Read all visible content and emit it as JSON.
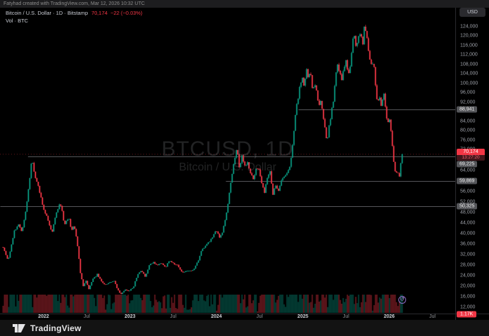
{
  "header": {
    "attribution": "Fatyhad created with TradingView.com, Mar 12, 2026 10:32 UTC"
  },
  "legend": {
    "symbol_line": "Bitcoin / U.S. Dollar · 1D · Bitstamp",
    "price": "70,174",
    "change": "−22 (−0.03%)",
    "vol_line": "Vol · BTC"
  },
  "currency_button": {
    "label": "USD"
  },
  "watermark": {
    "line1": "BTCUSD, 1D",
    "line2": "Bitcoin / U.S. Dollar"
  },
  "footer": {
    "brand": "TradingView"
  },
  "colors": {
    "up": "#089981",
    "down": "#f23645",
    "up_dim": "rgba(8,153,129,0.4)",
    "down_dim": "rgba(242,54,69,0.4)",
    "level_line": "#55565a",
    "axis_border": "#2a2a2e"
  },
  "price_axis": {
    "last_price_label": "70,174",
    "countdown": "13:27:20",
    "volume_label": "1.17K",
    "ticks": [
      {
        "v": 124000,
        "label": "124,000"
      },
      {
        "v": 120000,
        "label": "120,000"
      },
      {
        "v": 116000,
        "label": "116,000"
      },
      {
        "v": 112000,
        "label": "112,000"
      },
      {
        "v": 108000,
        "label": "108,000"
      },
      {
        "v": 104000,
        "label": "104,000"
      },
      {
        "v": 100000,
        "label": "100,000"
      },
      {
        "v": 96000,
        "label": "96,000"
      },
      {
        "v": 92000,
        "label": "92,000"
      },
      {
        "v": 84000,
        "label": "84,000"
      },
      {
        "v": 80000,
        "label": "80,000"
      },
      {
        "v": 76000,
        "label": "76,000"
      },
      {
        "v": 72000,
        "label": "72,000"
      },
      {
        "v": 64000,
        "label": "64,000"
      },
      {
        "v": 56000,
        "label": "56,000"
      },
      {
        "v": 52000,
        "label": "52,000"
      },
      {
        "v": 48000,
        "label": "48,000"
      },
      {
        "v": 44000,
        "label": "44,000"
      },
      {
        "v": 40000,
        "label": "40,000"
      },
      {
        "v": 36000,
        "label": "36,000"
      },
      {
        "v": 32000,
        "label": "32,000"
      },
      {
        "v": 28000,
        "label": "28,000"
      },
      {
        "v": 24000,
        "label": "24,000"
      },
      {
        "v": 20000,
        "label": "20,000"
      },
      {
        "v": 16000,
        "label": "16,000"
      },
      {
        "v": 12000,
        "label": "12,000"
      }
    ],
    "level_labels": [
      {
        "v": 88941,
        "label": "88,941"
      },
      {
        "v": 69225,
        "label": "69,225"
      },
      {
        "v": 59869,
        "label": "59,869"
      },
      {
        "v": 50325,
        "label": "50,325"
      }
    ]
  },
  "time_axis": {
    "labels": [
      {
        "text": "2022",
        "year": 2022.0,
        "major": true
      },
      {
        "text": "Jul",
        "year": 2022.5,
        "major": false
      },
      {
        "text": "2023",
        "year": 2023.0,
        "major": true
      },
      {
        "text": "Jul",
        "year": 2023.5,
        "major": false
      },
      {
        "text": "2024",
        "year": 2024.0,
        "major": true
      },
      {
        "text": "Jul",
        "year": 2024.5,
        "major": false
      },
      {
        "text": "2025",
        "year": 2025.0,
        "major": true
      },
      {
        "text": "Jul",
        "year": 2025.5,
        "major": false
      },
      {
        "text": "2026",
        "year": 2026.0,
        "major": true
      },
      {
        "text": "Jul",
        "year": 2026.5,
        "major": false
      }
    ]
  },
  "chart_data": {
    "type": "candlestick",
    "title": "BTCUSD, 1D",
    "symbol": "Bitcoin / U.S. Dollar",
    "exchange": "Bitstamp",
    "interval": "1D",
    "last_price": 70174,
    "change": -22,
    "change_pct": -0.03,
    "volume_btc": 1170,
    "y_axis": {
      "min": 12000,
      "max": 126500,
      "tick_step": 4000,
      "grid": false
    },
    "x_axis": {
      "start_year": 2021.53,
      "end_year": 2026.19,
      "legend_position": "top-left"
    },
    "price_levels": [
      {
        "price": 88941,
        "from_year": 2024.95
      },
      {
        "price": 69225,
        "from_year": 2021.82
      },
      {
        "price": 59869,
        "from_year": 2024.11
      },
      {
        "price": 50325,
        "from_year": 2021.5
      }
    ],
    "series": [
      [
        2021.532,
        34900
      ],
      [
        2021.589,
        29600
      ],
      [
        2021.661,
        40800
      ],
      [
        2021.71,
        44000
      ],
      [
        2021.75,
        40000
      ],
      [
        2021.806,
        51500
      ],
      [
        2021.863,
        68000
      ],
      [
        2021.903,
        61600
      ],
      [
        2021.952,
        56300
      ],
      [
        2022.0,
        48800
      ],
      [
        2022.048,
        45600
      ],
      [
        2022.097,
        40300
      ],
      [
        2022.145,
        47200
      ],
      [
        2022.194,
        51700
      ],
      [
        2022.242,
        43500
      ],
      [
        2022.29,
        46100
      ],
      [
        2022.323,
        41300
      ],
      [
        2022.355,
        43500
      ],
      [
        2022.395,
        34900
      ],
      [
        2022.427,
        24800
      ],
      [
        2022.46,
        20000
      ],
      [
        2022.492,
        22100
      ],
      [
        2022.524,
        18900
      ],
      [
        2022.573,
        22700
      ],
      [
        2022.621,
        24500
      ],
      [
        2022.669,
        21900
      ],
      [
        2022.718,
        20500
      ],
      [
        2022.766,
        21300
      ],
      [
        2022.815,
        21900
      ],
      [
        2022.863,
        18400
      ],
      [
        2022.895,
        17100
      ],
      [
        2022.944,
        18700
      ],
      [
        2022.992,
        18100
      ],
      [
        2023.04,
        19700
      ],
      [
        2023.089,
        24500
      ],
      [
        2023.137,
        25900
      ],
      [
        2023.177,
        23200
      ],
      [
        2023.218,
        27700
      ],
      [
        2023.266,
        29300
      ],
      [
        2023.315,
        27700
      ],
      [
        2023.363,
        28800
      ],
      [
        2023.411,
        27200
      ],
      [
        2023.46,
        29900
      ],
      [
        2023.508,
        28500
      ],
      [
        2023.556,
        27700
      ],
      [
        2023.605,
        25100
      ],
      [
        2023.653,
        26100
      ],
      [
        2023.702,
        25600
      ],
      [
        2023.75,
        26900
      ],
      [
        2023.798,
        30400
      ],
      [
        2023.831,
        33900
      ],
      [
        2023.879,
        35200
      ],
      [
        2023.927,
        37300
      ],
      [
        2023.976,
        40000
      ],
      [
        2024.008,
        41100
      ],
      [
        2024.04,
        38400
      ],
      [
        2024.073,
        40500
      ],
      [
        2024.105,
        45900
      ],
      [
        2024.137,
        52500
      ],
      [
        2024.169,
        60500
      ],
      [
        2024.202,
        67200
      ],
      [
        2024.234,
        72800
      ],
      [
        2024.266,
        64800
      ],
      [
        2024.298,
        69300
      ],
      [
        2024.331,
        65900
      ],
      [
        2024.363,
        67700
      ],
      [
        2024.395,
        62400
      ],
      [
        2024.427,
        60500
      ],
      [
        2024.46,
        65100
      ],
      [
        2024.492,
        64000
      ],
      [
        2024.524,
        59700
      ],
      [
        2024.556,
        56000
      ],
      [
        2024.589,
        61300
      ],
      [
        2024.621,
        63200
      ],
      [
        2024.653,
        55200
      ],
      [
        2024.685,
        58700
      ],
      [
        2024.718,
        56000
      ],
      [
        2024.75,
        59700
      ],
      [
        2024.782,
        61300
      ],
      [
        2024.815,
        62400
      ],
      [
        2024.847,
        65100
      ],
      [
        2024.871,
        69600
      ],
      [
        2024.895,
        77900
      ],
      [
        2024.919,
        87700
      ],
      [
        2024.944,
        93700
      ],
      [
        2024.968,
        99000
      ],
      [
        2024.992,
        103800
      ],
      [
        2025.016,
        99300
      ],
      [
        2025.04,
        106800
      ],
      [
        2025.065,
        102300
      ],
      [
        2025.089,
        103800
      ],
      [
        2025.113,
        97900
      ],
      [
        2025.137,
        100800
      ],
      [
        2025.161,
        96400
      ],
      [
        2025.185,
        90400
      ],
      [
        2025.21,
        93400
      ],
      [
        2025.234,
        86000
      ],
      [
        2025.258,
        80000
      ],
      [
        2025.282,
        75600
      ],
      [
        2025.306,
        83000
      ],
      [
        2025.331,
        87500
      ],
      [
        2025.355,
        93400
      ],
      [
        2025.379,
        103800
      ],
      [
        2025.403,
        108300
      ],
      [
        2025.427,
        105300
      ],
      [
        2025.452,
        101700
      ],
      [
        2025.476,
        106800
      ],
      [
        2025.5,
        109800
      ],
      [
        2025.524,
        103800
      ],
      [
        2025.548,
        106800
      ],
      [
        2025.573,
        117200
      ],
      [
        2025.597,
        120100
      ],
      [
        2025.621,
        115700
      ],
      [
        2025.645,
        118700
      ],
      [
        2025.669,
        121600
      ],
      [
        2025.694,
        117200
      ],
      [
        2025.718,
        126100
      ],
      [
        2025.742,
        118700
      ],
      [
        2025.766,
        112700
      ],
      [
        2025.79,
        106800
      ],
      [
        2025.815,
        109800
      ],
      [
        2025.839,
        100800
      ],
      [
        2025.863,
        90400
      ],
      [
        2025.887,
        94900
      ],
      [
        2025.911,
        88900
      ],
      [
        2025.935,
        96400
      ],
      [
        2025.96,
        87500
      ],
      [
        2025.984,
        83000
      ],
      [
        2026.008,
        84500
      ],
      [
        2026.032,
        74100
      ],
      [
        2026.056,
        65900
      ],
      [
        2026.081,
        61900
      ],
      [
        2026.097,
        64500
      ],
      [
        2026.113,
        60500
      ],
      [
        2026.129,
        65900
      ],
      [
        2026.145,
        67700
      ],
      [
        2026.161,
        70174
      ]
    ]
  }
}
